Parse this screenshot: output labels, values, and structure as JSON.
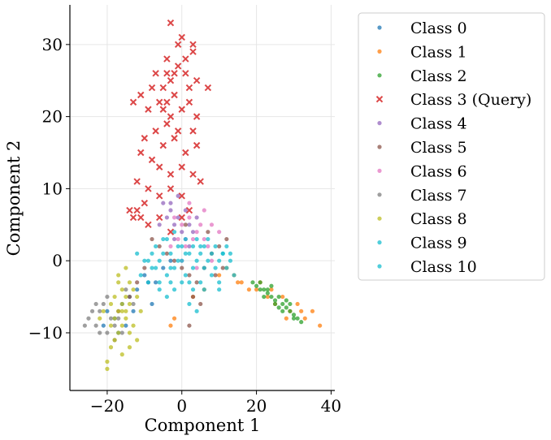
{
  "chart_data": {
    "type": "scatter",
    "title": "",
    "xlabel": "Component 1",
    "ylabel": "Component 2",
    "xlim": [
      -30,
      41
    ],
    "ylim": [
      -18,
      35.5
    ],
    "xticks": [
      -20,
      0,
      20,
      40
    ],
    "yticks": [
      -10,
      0,
      10,
      20,
      30
    ],
    "xtick_labels": [
      "−20",
      "0",
      "20",
      "40"
    ],
    "ytick_labels": [
      "−10",
      "0",
      "10",
      "20",
      "30"
    ],
    "grid": true,
    "legend_position": "outside-right",
    "series": [
      {
        "name": "Class 0",
        "color": "#1f77b4",
        "marker": "dot",
        "points": [
          [
            -18,
            -8
          ],
          [
            -20,
            -7
          ],
          [
            -16,
            -6
          ],
          [
            -15,
            -9
          ],
          [
            -12,
            -4
          ],
          [
            -9,
            -3
          ],
          [
            -14,
            -5
          ],
          [
            -8,
            -6
          ],
          [
            -5,
            -1
          ],
          [
            -3,
            0
          ],
          [
            -10,
            -2
          ],
          [
            -21,
            -9
          ],
          [
            -17,
            -10
          ],
          [
            -13,
            -7
          ],
          [
            -7,
            -3
          ]
        ]
      },
      {
        "name": "Class 1",
        "color": "#ff7f0e",
        "marker": "dot",
        "points": [
          [
            16,
            -3
          ],
          [
            18,
            -4
          ],
          [
            21,
            -3
          ],
          [
            23,
            -5
          ],
          [
            25,
            -6
          ],
          [
            27,
            -5
          ],
          [
            29,
            -7
          ],
          [
            31,
            -6
          ],
          [
            33,
            -8
          ],
          [
            35,
            -7
          ],
          [
            37,
            -9
          ],
          [
            14,
            -2
          ],
          [
            12,
            -1
          ],
          [
            10,
            -2
          ],
          [
            6,
            -4
          ],
          [
            3,
            -5
          ],
          [
            -2,
            -8
          ],
          [
            -3,
            -9
          ],
          [
            20,
            -4
          ],
          [
            24,
            -4
          ],
          [
            28,
            -8
          ],
          [
            32,
            -7
          ],
          [
            15,
            -3
          ]
        ]
      },
      {
        "name": "Class 2",
        "color": "#2ca02c",
        "marker": "dot",
        "points": [
          [
            19,
            -3
          ],
          [
            20,
            -3.5
          ],
          [
            21,
            -4
          ],
          [
            22,
            -4
          ],
          [
            23,
            -4.5
          ],
          [
            24,
            -5
          ],
          [
            25,
            -5.5
          ],
          [
            26,
            -5
          ],
          [
            27,
            -6
          ],
          [
            28,
            -6.5
          ],
          [
            29,
            -7
          ],
          [
            30,
            -7.5
          ],
          [
            31,
            -8
          ],
          [
            25,
            -6
          ],
          [
            27,
            -7
          ],
          [
            22,
            -5
          ],
          [
            24,
            -3.5
          ],
          [
            26,
            -6.5
          ],
          [
            28,
            -5.5
          ],
          [
            30,
            -8
          ],
          [
            23,
            -4
          ],
          [
            29,
            -6
          ],
          [
            32,
            -8.5
          ],
          [
            21,
            -3
          ]
        ]
      },
      {
        "name": "Class 3 (Query)",
        "color": "#d62728",
        "marker": "x",
        "points": [
          [
            -3,
            33
          ],
          [
            0,
            31
          ],
          [
            3,
            30
          ],
          [
            1,
            28
          ],
          [
            -1,
            27
          ],
          [
            -4,
            26
          ],
          [
            -3,
            25
          ],
          [
            -7,
            26
          ],
          [
            -8,
            24
          ],
          [
            -5,
            24
          ],
          [
            -2,
            23
          ],
          [
            2,
            24
          ],
          [
            4,
            25
          ],
          [
            7,
            24
          ],
          [
            -11,
            23
          ],
          [
            -13,
            22
          ],
          [
            -9,
            21
          ],
          [
            -5,
            21
          ],
          [
            -3,
            20
          ],
          [
            0,
            21
          ],
          [
            2,
            22
          ],
          [
            4,
            20
          ],
          [
            -7,
            18
          ],
          [
            -4,
            19
          ],
          [
            -1,
            18
          ],
          [
            3,
            18
          ],
          [
            -10,
            17
          ],
          [
            -5,
            16
          ],
          [
            -2,
            17
          ],
          [
            1,
            15
          ],
          [
            4,
            16
          ],
          [
            -11,
            15
          ],
          [
            -8,
            14
          ],
          [
            -6,
            13
          ],
          [
            -3,
            12
          ],
          [
            0,
            13
          ],
          [
            3,
            12
          ],
          [
            5,
            11
          ],
          [
            -12,
            11
          ],
          [
            -9,
            10
          ],
          [
            -6,
            9
          ],
          [
            -3,
            10
          ],
          [
            0,
            9
          ],
          [
            -14,
            7
          ],
          [
            -12,
            7
          ],
          [
            -11,
            6
          ],
          [
            -9,
            5
          ],
          [
            -10,
            8
          ],
          [
            -6,
            6
          ],
          [
            -3,
            4
          ],
          [
            0,
            6
          ],
          [
            2,
            7
          ],
          [
            -13,
            6
          ],
          [
            -1,
            30
          ],
          [
            -4,
            28
          ],
          [
            1,
            26
          ],
          [
            -6,
            22
          ],
          [
            3,
            29
          ],
          [
            -2,
            26
          ],
          [
            -4,
            22
          ]
        ]
      },
      {
        "name": "Class 4",
        "color": "#9467bd",
        "marker": "dot",
        "points": [
          [
            -5,
            8
          ],
          [
            -3,
            7
          ],
          [
            -1,
            6
          ],
          [
            1,
            7
          ],
          [
            -2,
            5
          ],
          [
            0,
            4
          ],
          [
            2,
            5
          ],
          [
            -4,
            6
          ],
          [
            -6,
            5
          ],
          [
            3,
            4
          ],
          [
            1,
            3
          ],
          [
            -2,
            3
          ],
          [
            -3,
            8
          ],
          [
            4,
            6
          ],
          [
            -1,
            9
          ],
          [
            2,
            2
          ]
        ]
      },
      {
        "name": "Class 5",
        "color": "#8c564b",
        "marker": "dot",
        "points": [
          [
            -8,
            3
          ],
          [
            -6,
            2
          ],
          [
            -4,
            1
          ],
          [
            -2,
            0
          ],
          [
            0,
            -1
          ],
          [
            2,
            -2
          ],
          [
            4,
            -3
          ],
          [
            6,
            -1
          ],
          [
            8,
            1
          ],
          [
            10,
            2
          ],
          [
            12,
            3
          ],
          [
            3,
            -5
          ],
          [
            5,
            -6
          ],
          [
            2,
            -9
          ],
          [
            9,
            -2
          ],
          [
            -10,
            -1
          ],
          [
            -14,
            -5
          ],
          [
            -17,
            -7
          ],
          [
            -12,
            -3
          ],
          [
            7,
            4
          ],
          [
            1,
            5
          ],
          [
            11,
            -1
          ]
        ]
      },
      {
        "name": "Class 6",
        "color": "#e377c2",
        "marker": "dot",
        "points": [
          [
            -2,
            6
          ],
          [
            0,
            5
          ],
          [
            2,
            6
          ],
          [
            4,
            4
          ],
          [
            6,
            3
          ],
          [
            3,
            3
          ],
          [
            1,
            2
          ],
          [
            -1,
            3
          ],
          [
            5,
            5
          ],
          [
            7,
            2
          ],
          [
            8,
            0
          ],
          [
            4,
            -1
          ],
          [
            0,
            0
          ],
          [
            -3,
            2
          ],
          [
            10,
            4
          ],
          [
            6,
            7
          ],
          [
            8,
            5
          ],
          [
            2,
            8
          ]
        ]
      },
      {
        "name": "Class 7",
        "color": "#7f7f7f",
        "marker": "dot",
        "points": [
          [
            -25,
            -8
          ],
          [
            -23,
            -9
          ],
          [
            -22,
            -7
          ],
          [
            -20,
            -10
          ],
          [
            -19,
            -8
          ],
          [
            -18,
            -9
          ],
          [
            -21,
            -6
          ],
          [
            -24,
            -7
          ],
          [
            -17,
            -8
          ],
          [
            -16,
            -10
          ],
          [
            -22,
            -10
          ],
          [
            -20,
            -5
          ],
          [
            -15,
            -4
          ],
          [
            -13,
            -6
          ],
          [
            -26,
            -9
          ],
          [
            -23,
            -6
          ],
          [
            -18,
            -11
          ]
        ]
      },
      {
        "name": "Class 8",
        "color": "#bcbd22",
        "marker": "dot",
        "points": [
          [
            -17,
            -3
          ],
          [
            -16,
            -4
          ],
          [
            -15,
            -5
          ],
          [
            -16,
            -6
          ],
          [
            -17,
            -7
          ],
          [
            -15,
            -8
          ],
          [
            -16,
            -9
          ],
          [
            -17,
            -10
          ],
          [
            -18,
            -11
          ],
          [
            -19,
            -12
          ],
          [
            -20,
            -15
          ],
          [
            -14,
            -3
          ],
          [
            -13,
            -4
          ],
          [
            -14,
            -6
          ],
          [
            -15,
            -7
          ],
          [
            -13,
            -9
          ],
          [
            -12,
            -11
          ],
          [
            -14,
            -12
          ],
          [
            -16,
            -13
          ],
          [
            -20,
            -14
          ],
          [
            -22,
            -8
          ],
          [
            -21,
            -7
          ],
          [
            -19,
            -6
          ],
          [
            -18,
            -5
          ],
          [
            -12,
            -5
          ],
          [
            -11,
            -7
          ],
          [
            -17,
            -2
          ],
          [
            -15,
            -1
          ],
          [
            -14,
            -10
          ],
          [
            -18,
            -8
          ],
          [
            -16,
            -7
          ],
          [
            -19,
            -9
          ]
        ]
      },
      {
        "name": "Class 9",
        "color": "#17becf",
        "marker": "dot",
        "points": [
          [
            -10,
            0
          ],
          [
            -8,
            -1
          ],
          [
            -6,
            0
          ],
          [
            -4,
            -2
          ],
          [
            -2,
            -1
          ],
          [
            0,
            0
          ],
          [
            2,
            1
          ],
          [
            4,
            0
          ],
          [
            6,
            -1
          ],
          [
            8,
            1
          ],
          [
            10,
            0
          ],
          [
            12,
            -1
          ],
          [
            -7,
            2
          ],
          [
            -5,
            3
          ],
          [
            -3,
            1
          ],
          [
            -1,
            2
          ],
          [
            1,
            3
          ],
          [
            3,
            2
          ],
          [
            5,
            1
          ],
          [
            7,
            3
          ],
          [
            9,
            2
          ],
          [
            11,
            1
          ],
          [
            13,
            0
          ],
          [
            -9,
            -3
          ],
          [
            -6,
            -4
          ],
          [
            -3,
            -3
          ],
          [
            1,
            -2
          ],
          [
            3,
            -4
          ],
          [
            5,
            -3
          ],
          [
            -12,
            1
          ],
          [
            14,
            -2
          ],
          [
            2,
            -6
          ],
          [
            4,
            -7
          ],
          [
            -4,
            -5
          ],
          [
            0,
            -3
          ],
          [
            6,
            2
          ],
          [
            -8,
            1
          ],
          [
            10,
            -3
          ],
          [
            12,
            2
          ],
          [
            -2,
            4
          ]
        ]
      },
      {
        "name": "Class 10",
        "color": "#17becf",
        "marker": "dot",
        "points": [
          [
            -11,
            -2
          ],
          [
            -9,
            0
          ],
          [
            -7,
            -1
          ],
          [
            -5,
            1
          ],
          [
            -3,
            -1
          ],
          [
            -1,
            0
          ],
          [
            1,
            1
          ],
          [
            3,
            -1
          ],
          [
            5,
            2
          ],
          [
            7,
            0
          ],
          [
            9,
            -1
          ],
          [
            11,
            1
          ],
          [
            -4,
            3
          ],
          [
            0,
            2
          ],
          [
            4,
            3
          ],
          [
            8,
            -2
          ],
          [
            -6,
            -3
          ],
          [
            2,
            -3
          ],
          [
            6,
            -4
          ],
          [
            10,
            -4
          ],
          [
            -2,
            -4
          ],
          [
            13,
            1
          ]
        ]
      }
    ]
  }
}
